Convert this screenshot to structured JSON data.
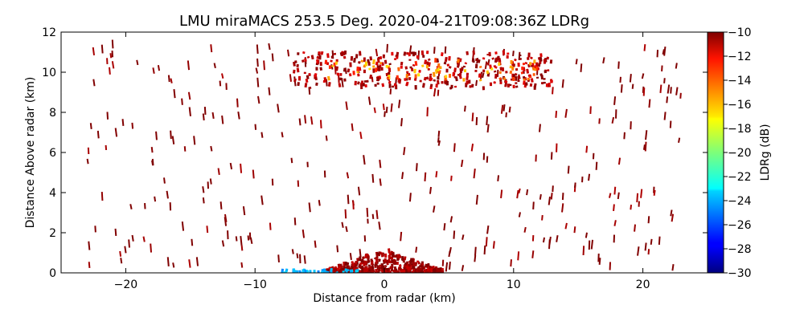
{
  "chart_data": {
    "type": "heatmap",
    "title": "LMU miraMACS 253.5 Deg. 2020-04-21T09:08:36Z  LDRg",
    "xlabel": "Distance from radar (km)",
    "ylabel": "Distance Above radar  (km)",
    "xlim": [
      -25,
      25
    ],
    "ylim": [
      0,
      12
    ],
    "x_ticks": [
      -20,
      -10,
      0,
      10,
      20
    ],
    "x_tick_labels": [
      "−20",
      "−10",
      "0",
      "10",
      "20"
    ],
    "y_ticks": [
      0,
      2,
      4,
      6,
      8,
      10,
      12
    ],
    "y_tick_labels": [
      "0",
      "2",
      "4",
      "6",
      "8",
      "10",
      "12"
    ],
    "colorbar": {
      "label": "LDRg (dB)",
      "range": [
        -30,
        -10
      ],
      "colormap": "jet",
      "ticks": [
        -10,
        -12,
        -14,
        -16,
        -18,
        -20,
        -22,
        -24,
        -26,
        -28,
        -30
      ],
      "tick_labels": [
        "−10",
        "−12",
        "−14",
        "−16",
        "−18",
        "−20",
        "−22",
        "−24",
        "−26",
        "−28",
        "−30"
      ]
    },
    "features": [
      {
        "name": "scatter",
        "x_range": [
          -23,
          23
        ],
        "y_range": [
          0.2,
          11.5
        ],
        "value_dB": -10,
        "count": 360
      },
      {
        "name": "cloud-layer",
        "x_range": [
          -7,
          13
        ],
        "y_range": [
          9.2,
          11.0
        ],
        "value_dB": -11,
        "count": 320
      },
      {
        "name": "cloud-layer-core",
        "x_range": [
          -5,
          12
        ],
        "y_range": [
          9.6,
          10.6
        ],
        "value_dB": -15,
        "count": 70
      },
      {
        "name": "near-ground-clutter",
        "x_range": [
          -4.5,
          4.5
        ],
        "y_range": [
          0,
          1.2
        ],
        "value_dB": -10.5,
        "count": 520
      },
      {
        "name": "ground-low-ldr",
        "x_range": [
          -8,
          -2
        ],
        "y_range": [
          0,
          0.15
        ],
        "value_dB": -24,
        "count": 40
      }
    ]
  }
}
